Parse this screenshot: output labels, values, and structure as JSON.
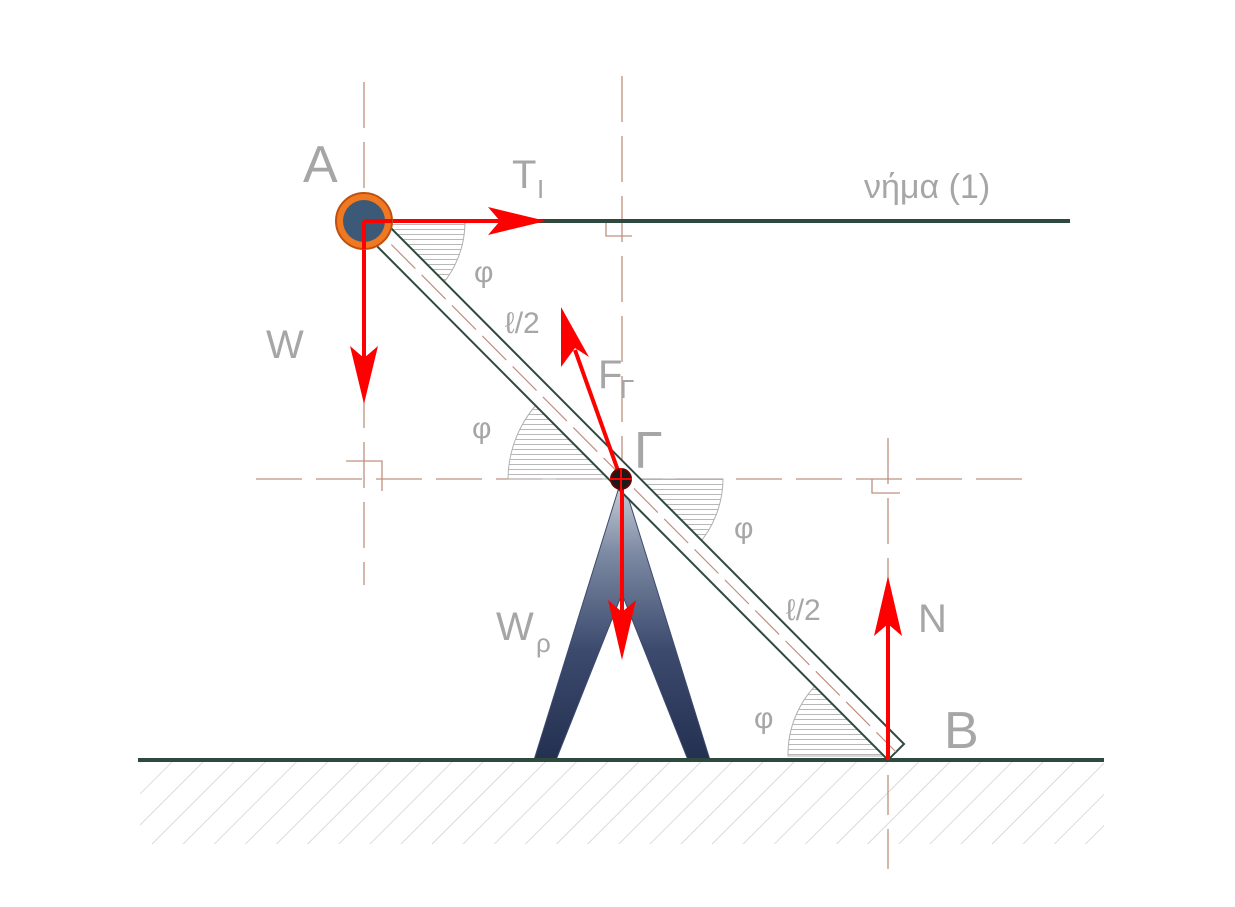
{
  "labels": {
    "point_a": "A",
    "point_b": "B",
    "point_g": "Γ",
    "tension": "T",
    "tension_sub": "I",
    "string": "νήμα (1)",
    "weight": "W",
    "support_force": "F",
    "support_force_sub": "Γ",
    "support_weight": "W",
    "support_weight_sub": "ρ",
    "normal": "N",
    "half_length_top": "ℓ/2",
    "half_length_bottom": "ℓ/2",
    "angle_a": "φ",
    "angle_g_left": "φ",
    "angle_g_right": "φ",
    "angle_b": "φ"
  },
  "colors": {
    "force": "#ff0000",
    "rod": "#2e4a3f",
    "guide": "#c09080",
    "label": "#a6a6a6",
    "pin_fill": "#3c5a78",
    "pin_ring": "#f07820",
    "support_dark": "#243050",
    "support_light": "#c8cfd8"
  }
}
